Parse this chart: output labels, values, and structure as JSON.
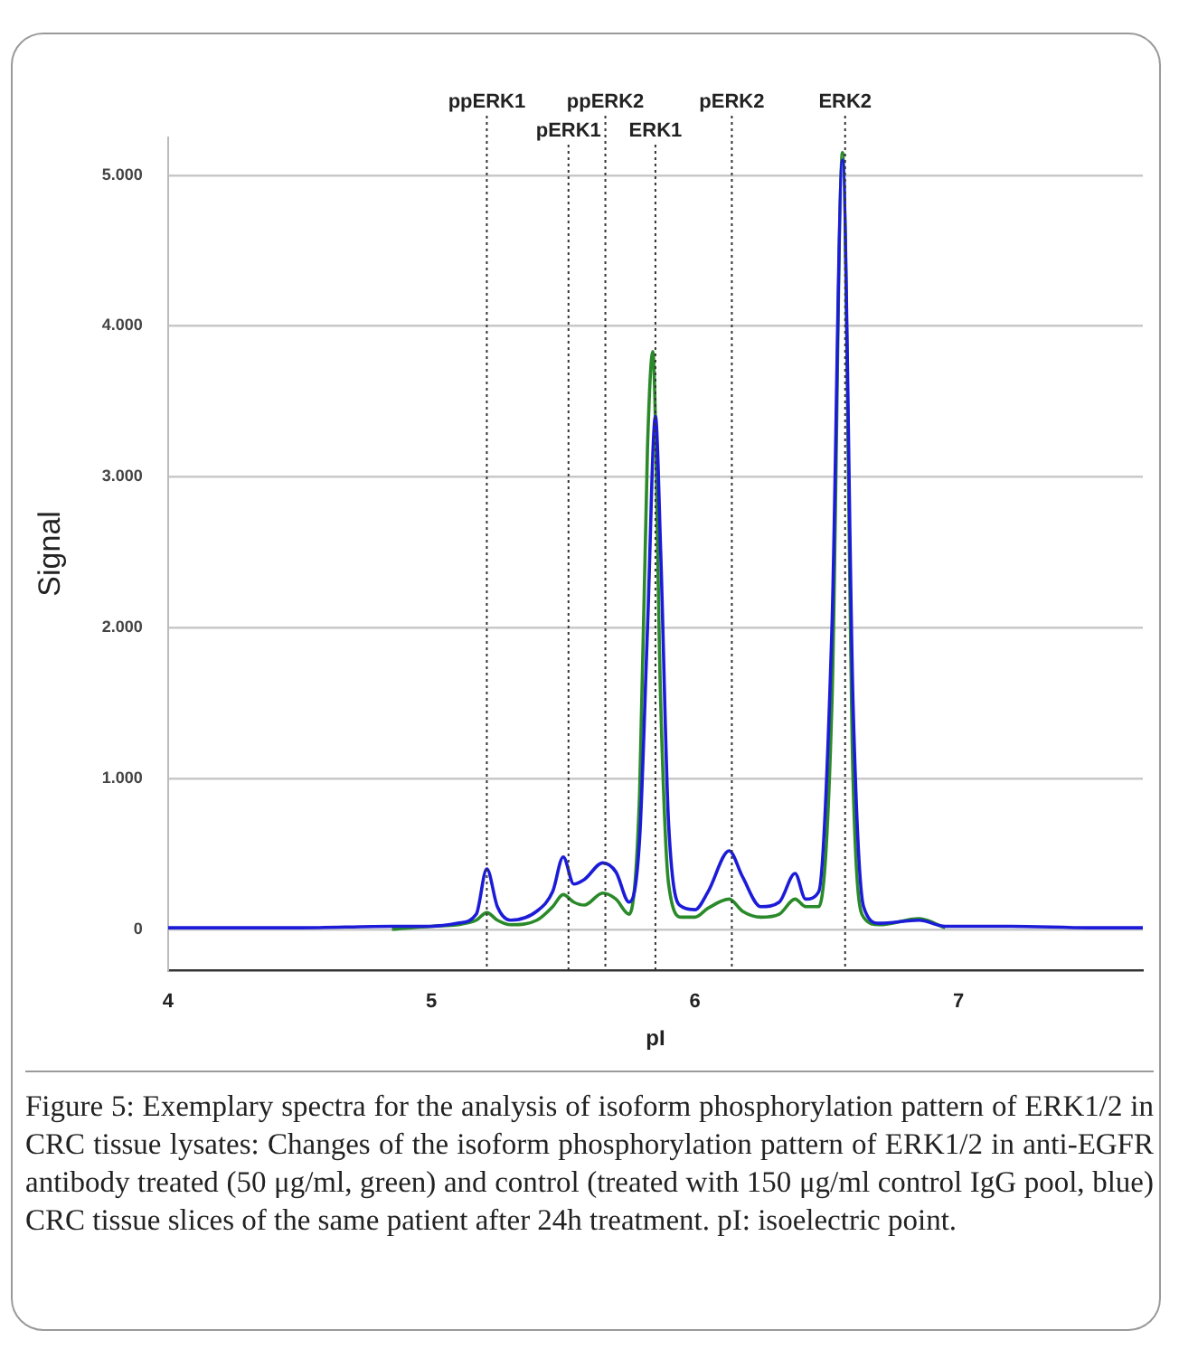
{
  "chart_data": {
    "type": "line",
    "xlabel": "pI",
    "ylabel": "Signal",
    "xlim": [
      4,
      7.7
    ],
    "xticks": [
      4,
      5,
      6,
      7
    ],
    "ylim": [
      -270,
      5250
    ],
    "yticks": [
      0,
      {
        "value": 1000,
        "label": "1.000"
      },
      {
        "value": 2000,
        "label": "2.000"
      },
      {
        "value": 3000,
        "label": "3.000"
      },
      {
        "value": 4000,
        "label": "4.000"
      },
      {
        "value": 5000,
        "label": "5.000"
      }
    ],
    "grid": "y",
    "legend": false,
    "marker": "none",
    "line_style": "solid",
    "series": [
      {
        "color": "#1c1cd8",
        "x": [
          4.0,
          4.5,
          4.85,
          5.0,
          5.1,
          5.17,
          5.21,
          5.25,
          5.3,
          5.4,
          5.46,
          5.5,
          5.54,
          5.58,
          5.65,
          5.7,
          5.75,
          5.79,
          5.82,
          5.85,
          5.87,
          5.9,
          5.95,
          6.0,
          6.05,
          6.13,
          6.18,
          6.25,
          6.32,
          6.38,
          6.42,
          6.47,
          6.52,
          6.56,
          6.6,
          6.64,
          6.7,
          6.85,
          6.95,
          7.2,
          7.5,
          7.7
        ],
        "values": [
          10,
          10,
          20,
          20,
          40,
          100,
          400,
          150,
          60,
          120,
          250,
          480,
          300,
          330,
          440,
          380,
          180,
          600,
          2000,
          3400,
          2500,
          700,
          150,
          130,
          250,
          520,
          350,
          150,
          180,
          370,
          200,
          250,
          2000,
          5100,
          1500,
          150,
          40,
          60,
          20,
          20,
          10,
          10
        ]
      },
      {
        "color": "#2a8a2a",
        "x": [
          4.85,
          5.0,
          5.1,
          5.17,
          5.21,
          5.25,
          5.3,
          5.4,
          5.46,
          5.5,
          5.54,
          5.58,
          5.65,
          5.7,
          5.75,
          5.79,
          5.82,
          5.84,
          5.87,
          5.9,
          5.95,
          6.0,
          6.05,
          6.13,
          6.18,
          6.25,
          6.32,
          6.38,
          6.42,
          6.47,
          6.52,
          6.56,
          6.6,
          6.64,
          6.7,
          6.85,
          6.95
        ],
        "values": [
          0,
          20,
          30,
          60,
          110,
          60,
          30,
          60,
          150,
          230,
          180,
          160,
          240,
          200,
          100,
          900,
          3200,
          3830,
          1500,
          300,
          80,
          80,
          140,
          200,
          120,
          80,
          100,
          200,
          150,
          150,
          1500,
          5150,
          1000,
          80,
          30,
          70,
          10
        ]
      }
    ],
    "ref_lines": [
      {
        "axis": "x",
        "value": 5.21,
        "label": "ppERK1",
        "line_style": "dotted"
      },
      {
        "axis": "x",
        "value": 5.52,
        "label": "pERK1",
        "line_style": "dotted"
      },
      {
        "axis": "x",
        "value": 5.66,
        "label": "ppERK2",
        "line_style": "dotted"
      },
      {
        "axis": "x",
        "value": 5.85,
        "label": "ERK1",
        "line_style": "dotted"
      },
      {
        "axis": "x",
        "value": 6.14,
        "label": "pERK2",
        "line_style": "dotted"
      },
      {
        "axis": "x",
        "value": 6.57,
        "label": "ERK2",
        "line_style": "dotted"
      }
    ],
    "annotations": [
      "Figure 5: Exemplary spectra for the analysis of isoform phosphorylation pattern of ERK1/2 in CRC tissue lysates: Changes of the isoform phosphorylation pattern of ERK1/2 in anti-EGFR antibody treated (50 μg/ml, green) and control (treated with 150 μg/ml control IgG pool, blue) CRC tissue slices of the same patient after 24h treatment. pI: isoelectric point."
    ]
  }
}
